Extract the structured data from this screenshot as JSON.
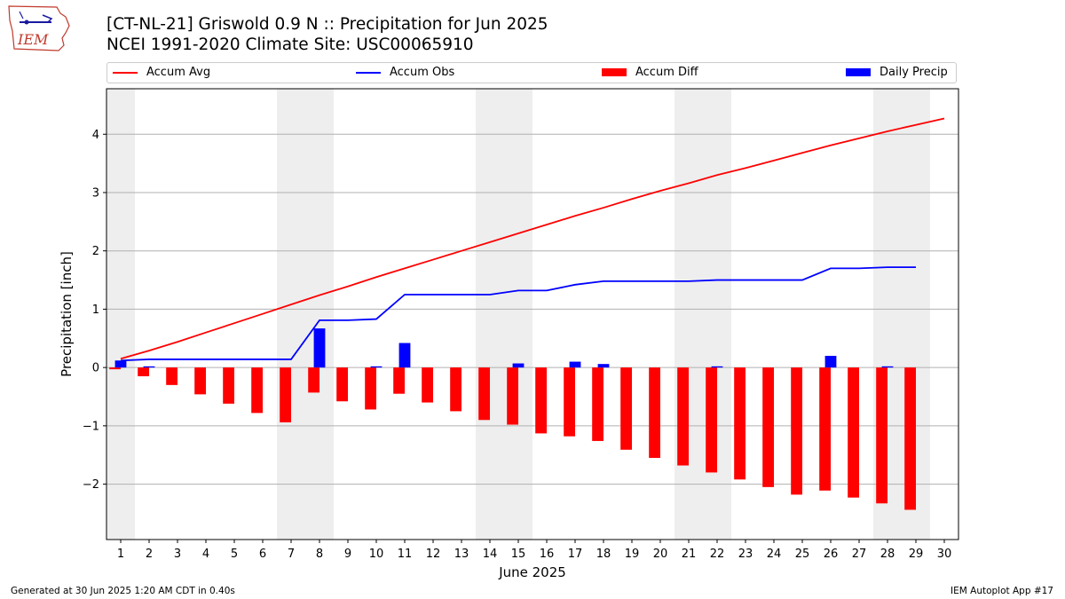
{
  "header": {
    "title_line1": "[CT-NL-21] Griswold 0.9 N :: Precipitation for Jun 2025",
    "title_line2": "NCEI 1991-2020 Climate Site: USC00065910",
    "logo_text": "IEM"
  },
  "legend": {
    "accum_avg": "Accum Avg",
    "accum_obs": "Accum Obs",
    "accum_diff": "Accum Diff",
    "daily_precip": "Daily Precip"
  },
  "footer": {
    "generated": "Generated at 30 Jun 2025 1:20 AM CDT in 0.40s",
    "app": "IEM Autoplot App #17"
  },
  "chart_data": {
    "type": "bar",
    "xlabel": "June 2025",
    "ylabel": "Precipitation [inch]",
    "x": [
      1,
      2,
      3,
      4,
      5,
      6,
      7,
      8,
      9,
      10,
      11,
      12,
      13,
      14,
      15,
      16,
      17,
      18,
      19,
      20,
      21,
      22,
      23,
      24,
      25,
      26,
      27,
      28,
      29,
      30
    ],
    "xlim": [
      0.5,
      30.5
    ],
    "ylim": [
      -2.95,
      4.78
    ],
    "yticks": [
      -2,
      -1,
      0,
      1,
      2,
      3,
      4
    ],
    "grid": "horizontal",
    "weekend_days": [
      1,
      7,
      8,
      14,
      15,
      21,
      22,
      28,
      29
    ],
    "series": [
      {
        "name": "Accum Avg",
        "type": "line",
        "color": "#ff0000",
        "x": [
          1,
          2,
          3,
          4,
          5,
          6,
          7,
          8,
          9,
          10,
          11,
          12,
          13,
          14,
          15,
          16,
          17,
          18,
          19,
          20,
          21,
          22,
          23,
          24,
          25,
          26,
          27,
          28,
          29,
          30
        ],
        "values": [
          0.15,
          0.29,
          0.44,
          0.6,
          0.76,
          0.92,
          1.08,
          1.24,
          1.39,
          1.55,
          1.7,
          1.85,
          2.0,
          2.15,
          2.3,
          2.45,
          2.6,
          2.74,
          2.89,
          3.03,
          3.16,
          3.3,
          3.42,
          3.55,
          3.68,
          3.81,
          3.93,
          4.05,
          4.16,
          4.27
        ]
      },
      {
        "name": "Accum Obs",
        "type": "line",
        "color": "#0000ff",
        "x": [
          1,
          2,
          3,
          4,
          5,
          6,
          7,
          8,
          9,
          10,
          11,
          12,
          13,
          14,
          15,
          16,
          17,
          18,
          19,
          20,
          21,
          22,
          23,
          24,
          25,
          26,
          27,
          28,
          29
        ],
        "values": [
          0.12,
          0.14,
          0.14,
          0.14,
          0.14,
          0.14,
          0.14,
          0.81,
          0.81,
          0.83,
          1.25,
          1.25,
          1.25,
          1.25,
          1.32,
          1.32,
          1.42,
          1.48,
          1.48,
          1.48,
          1.48,
          1.5,
          1.5,
          1.5,
          1.5,
          1.7,
          1.7,
          1.72,
          1.72
        ]
      },
      {
        "name": "Accum Diff",
        "type": "bar",
        "color": "#ff0000",
        "x": [
          1,
          2,
          3,
          4,
          5,
          6,
          7,
          8,
          9,
          10,
          11,
          12,
          13,
          14,
          15,
          16,
          17,
          18,
          19,
          20,
          21,
          22,
          23,
          24,
          25,
          26,
          27,
          28,
          29
        ],
        "values": [
          -0.03,
          -0.15,
          -0.3,
          -0.46,
          -0.62,
          -0.78,
          -0.94,
          -0.43,
          -0.58,
          -0.72,
          -0.45,
          -0.6,
          -0.75,
          -0.9,
          -0.98,
          -1.13,
          -1.18,
          -1.26,
          -1.41,
          -1.55,
          -1.68,
          -1.8,
          -1.92,
          -2.05,
          -2.18,
          -2.11,
          -2.23,
          -2.33,
          -2.44
        ]
      },
      {
        "name": "Daily Precip",
        "type": "bar",
        "color": "#0000ff",
        "x": [
          1,
          2,
          3,
          4,
          5,
          6,
          7,
          8,
          9,
          10,
          11,
          12,
          13,
          14,
          15,
          16,
          17,
          18,
          19,
          20,
          21,
          22,
          23,
          24,
          25,
          26,
          27,
          28,
          29
        ],
        "values": [
          0.12,
          0.02,
          0,
          0,
          0,
          0,
          0,
          0.67,
          0,
          0.02,
          0.42,
          0,
          0,
          0,
          0.07,
          0,
          0.1,
          0.06,
          0,
          0,
          0,
          0.02,
          0,
          0,
          0,
          0.2,
          0,
          0.02,
          0
        ]
      }
    ]
  }
}
